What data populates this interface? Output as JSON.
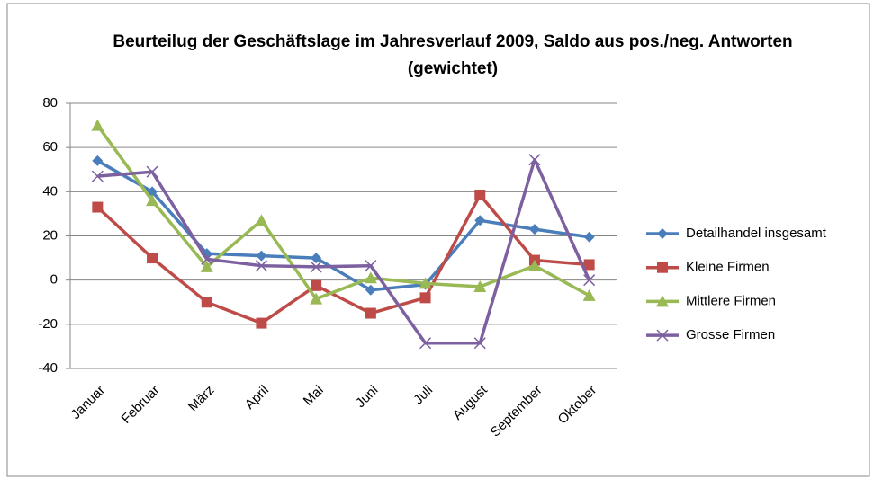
{
  "chart_data": {
    "type": "line",
    "title": "Beurteilug der Geschäftslage im Jahresverlauf 2009, Saldo aus pos./neg. Antworten (gewichtet)",
    "categories": [
      "Januar",
      "Februar",
      "März",
      "April",
      "Mai",
      "Juni",
      "Juli",
      "August",
      "September",
      "Oktober"
    ],
    "series": [
      {
        "name": "Detailhandel insgesamt",
        "color": "#4a7ebb",
        "marker": "diamond",
        "values": [
          54,
          40,
          12,
          11,
          10,
          -4.5,
          -2,
          27,
          23,
          19.5
        ]
      },
      {
        "name": "Kleine Firmen",
        "color": "#be4b48",
        "marker": "square",
        "values": [
          33,
          10,
          -10,
          -19.5,
          -2.5,
          -15,
          -8,
          38.5,
          9,
          7
        ]
      },
      {
        "name": "Mittlere Firmen",
        "color": "#98b954",
        "marker": "triangle",
        "values": [
          70,
          36,
          6,
          27,
          -8.5,
          1,
          -1.5,
          -3,
          6.5,
          -7
        ]
      },
      {
        "name": "Grosse Firmen",
        "color": "#7d60a0",
        "marker": "x",
        "values": [
          47,
          49,
          9.5,
          6.5,
          6,
          6.5,
          -28.5,
          -28.5,
          54.5,
          0
        ]
      }
    ],
    "ylim": [
      -40,
      80
    ],
    "yticks": [
      -40,
      -20,
      0,
      20,
      40,
      60,
      80
    ],
    "grid": true,
    "legend": "right"
  }
}
